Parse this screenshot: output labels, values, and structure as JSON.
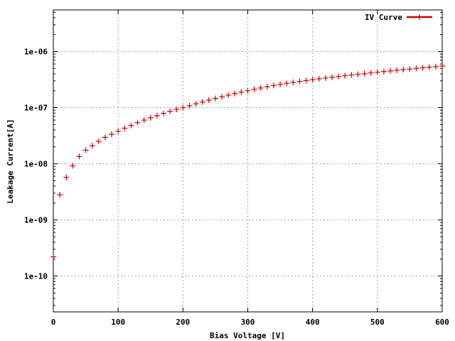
{
  "chart_data": {
    "type": "scatter",
    "xlabel": "Bias Voltage [V]",
    "ylabel": "Leakage Current[A]",
    "xlim": [
      0,
      600
    ],
    "ylim": [
      2.3e-11,
      5.5e-06
    ],
    "y_scale": "log",
    "grid": true,
    "legend_position": "top-right",
    "x_ticks": [
      {
        "value": 0,
        "label": "0"
      },
      {
        "value": 100,
        "label": "100"
      },
      {
        "value": 200,
        "label": "200"
      },
      {
        "value": 300,
        "label": "300"
      },
      {
        "value": 400,
        "label": "400"
      },
      {
        "value": 500,
        "label": "500"
      },
      {
        "value": 600,
        "label": "600"
      }
    ],
    "y_ticks": [
      {
        "value": 1e-10,
        "label": "1e-10"
      },
      {
        "value": 1e-09,
        "label": "1e-09"
      },
      {
        "value": 1e-08,
        "label": "1e-08"
      },
      {
        "value": 1e-07,
        "label": "1e-07"
      },
      {
        "value": 1e-06,
        "label": "1e-06"
      }
    ],
    "series": [
      {
        "name": "IV Curve",
        "color": "#cc0000",
        "x": [
          0,
          10,
          20,
          30,
          40,
          50,
          60,
          70,
          80,
          90,
          100,
          110,
          120,
          130,
          140,
          150,
          160,
          170,
          180,
          190,
          200,
          210,
          220,
          230,
          240,
          250,
          260,
          270,
          280,
          290,
          300,
          310,
          320,
          330,
          340,
          350,
          360,
          370,
          380,
          390,
          400,
          410,
          420,
          430,
          440,
          450,
          460,
          470,
          480,
          490,
          500,
          510,
          520,
          530,
          540,
          550,
          560,
          570,
          580,
          590,
          600
        ],
        "y": [
          2.2e-10,
          2.8e-09,
          5.7e-09,
          9.2e-09,
          1.35e-08,
          1.75e-08,
          2.1e-08,
          2.5e-08,
          2.95e-08,
          3.35e-08,
          3.8e-08,
          4.3e-08,
          4.8e-08,
          5.4e-08,
          6e-08,
          6.6e-08,
          7.2e-08,
          7.9e-08,
          8.6e-08,
          9.3e-08,
          1e-07,
          1.08e-07,
          1.17e-07,
          1.26e-07,
          1.36e-07,
          1.46e-07,
          1.56e-07,
          1.67e-07,
          1.78e-07,
          1.89e-07,
          2e-07,
          2.12e-07,
          2.24e-07,
          2.36e-07,
          2.48e-07,
          2.6e-07,
          2.71e-07,
          2.82e-07,
          2.93e-07,
          3.04e-07,
          3.15e-07,
          3.26e-07,
          3.37e-07,
          3.48e-07,
          3.59e-07,
          3.7e-07,
          3.81e-07,
          3.92e-07,
          4.03e-07,
          4.15e-07,
          4.27e-07,
          4.39e-07,
          4.51e-07,
          4.63e-07,
          4.75e-07,
          4.87e-07,
          5e-07,
          5.12e-07,
          5.25e-07,
          5.38e-07,
          5.52e-07
        ]
      }
    ]
  }
}
